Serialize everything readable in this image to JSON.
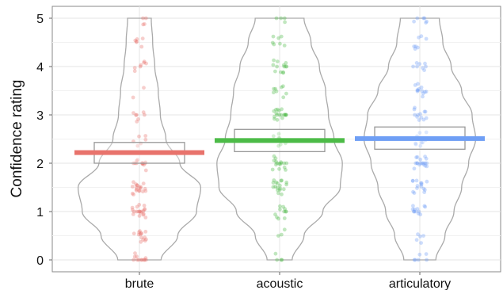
{
  "chart_data": {
    "type": "violin",
    "ylabel": "Confidence rating",
    "xlabel": "",
    "ylim": [
      0,
      5
    ],
    "yticks": [
      "0",
      "1",
      "2",
      "3",
      "4",
      "5"
    ],
    "grid": true,
    "categories": [
      "brute",
      "acoustic",
      "articulatory"
    ],
    "colors": [
      "#e8736c",
      "#4cbb47",
      "#6f9ff5"
    ],
    "means": [
      2.22,
      2.47,
      2.51
    ],
    "ci": [
      [
        2.0,
        2.43
      ],
      [
        2.24,
        2.7
      ],
      [
        2.29,
        2.75
      ]
    ],
    "violins": [
      [
        [
          0,
          0.31
        ],
        [
          0.5,
          0.55
        ],
        [
          1,
          0.82
        ],
        [
          1.5,
          0.88
        ],
        [
          2,
          0.58
        ],
        [
          2.5,
          0.38
        ],
        [
          3,
          0.3
        ],
        [
          3.5,
          0.27
        ],
        [
          4,
          0.22
        ],
        [
          4.5,
          0.19
        ],
        [
          5,
          0.17
        ]
      ],
      [
        [
          0,
          0.18
        ],
        [
          0.5,
          0.35
        ],
        [
          1,
          0.62
        ],
        [
          1.5,
          0.87
        ],
        [
          2,
          0.9
        ],
        [
          2.5,
          0.78
        ],
        [
          3,
          0.7
        ],
        [
          3.5,
          0.66
        ],
        [
          4,
          0.57
        ],
        [
          4.5,
          0.45
        ],
        [
          5,
          0.35
        ]
      ],
      [
        [
          0,
          0.23
        ],
        [
          0.5,
          0.36
        ],
        [
          1,
          0.49
        ],
        [
          1.5,
          0.6
        ],
        [
          2,
          0.7
        ],
        [
          2.5,
          0.8
        ],
        [
          3,
          0.75
        ],
        [
          3.5,
          0.6
        ],
        [
          4,
          0.45
        ],
        [
          4.5,
          0.33
        ],
        [
          5,
          0.28
        ]
      ]
    ]
  }
}
